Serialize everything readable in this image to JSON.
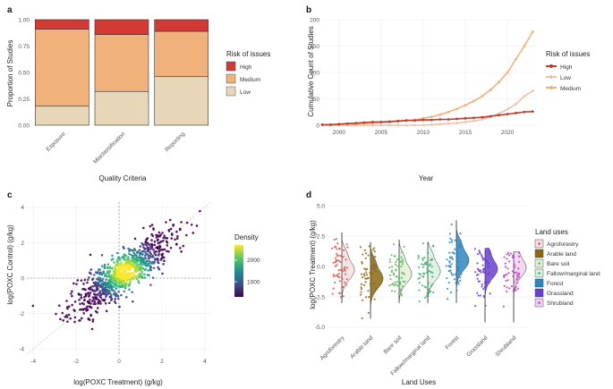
{
  "panels": {
    "a": {
      "label": "a",
      "chart_data": {
        "type": "bar",
        "stacked": true,
        "categories": [
          "Exposure",
          "Misclassification",
          "Reporting"
        ],
        "series": [
          {
            "name": "Low",
            "values": [
              0.18,
              0.32,
              0.46
            ],
            "color": "#e8d6b8"
          },
          {
            "name": "Medium",
            "values": [
              0.73,
              0.54,
              0.43
            ],
            "color": "#f0b27a"
          },
          {
            "name": "High",
            "values": [
              0.09,
              0.14,
              0.11
            ],
            "color": "#d33a34"
          }
        ],
        "ylim": [
          0,
          1
        ],
        "yticks": [
          "0.00",
          "0.25",
          "0.50",
          "0.75",
          "1.00"
        ],
        "xlabel": "Quality Criteria",
        "ylabel": "Proportion of Studies",
        "legend_title": "Risk of issues",
        "legend_items": [
          "High",
          "Medium",
          "Low"
        ]
      }
    },
    "b": {
      "label": "b",
      "chart_data": {
        "type": "line",
        "x": [
          1998,
          1999,
          2000,
          2001,
          2002,
          2003,
          2004,
          2005,
          2006,
          2007,
          2008,
          2009,
          2010,
          2011,
          2012,
          2013,
          2014,
          2015,
          2016,
          2017,
          2018,
          2019,
          2020,
          2021,
          2022,
          2023
        ],
        "series": [
          {
            "name": "High",
            "color": "#c0392b",
            "values": [
              1,
              1,
              2,
              3,
              4,
              5,
              6,
              6,
              7,
              8,
              9,
              9,
              10,
              10,
              11,
              11,
              12,
              13,
              14,
              15,
              17,
              19,
              21,
              23,
              25,
              26
            ]
          },
          {
            "name": "Low",
            "color": "#eac3ad",
            "values": [
              0,
              0,
              0,
              0,
              0,
              0,
              0,
              0,
              0,
              0,
              0,
              0,
              0,
              1,
              2,
              3,
              4,
              6,
              8,
              11,
              16,
              22,
              30,
              40,
              55,
              65
            ]
          },
          {
            "name": "Medium",
            "color": "#f0b27a",
            "values": [
              1,
              1,
              1,
              2,
              2,
              3,
              4,
              5,
              6,
              7,
              9,
              10,
              13,
              16,
              20,
              25,
              31,
              38,
              46,
              55,
              67,
              82,
              100,
              125,
              150,
              177
            ]
          }
        ],
        "xlim": [
          1998,
          2023.5
        ],
        "ylim": [
          0,
          200
        ],
        "xticks": [
          "2000",
          "2005",
          "2010",
          "2015",
          "2020"
        ],
        "yticks": [
          "0",
          "50",
          "100",
          "150",
          "200"
        ],
        "xlabel": "Year",
        "ylabel": "Cumulative Count of Studies",
        "legend_title": "Risk of issues",
        "legend_items": [
          "High",
          "Low",
          "Medium"
        ]
      }
    },
    "c": {
      "label": "c",
      "chart_data": {
        "type": "scatter",
        "description_density": true,
        "xlim": [
          -4.3,
          4.3
        ],
        "ylim": [
          -4.3,
          4.3
        ],
        "xticks": [
          "-4",
          "-2",
          "0",
          "2",
          "4"
        ],
        "yticks": [
          "-4",
          "-2",
          "0",
          "2",
          "4"
        ],
        "xlabel": "log(POXC Treatment) (g/kg)",
        "ylabel": "log(POXC Control) (g/kg)",
        "legend_title": "Density",
        "colorbar_ticks": [
          "2000",
          "1000"
        ],
        "colorbar_range": [
          300,
          2700
        ]
      }
    },
    "d": {
      "label": "d",
      "chart_data": {
        "type": "violin",
        "categories": [
          "Agroforestry",
          "Arable land",
          "Bare soil",
          "Fallow/marginal land",
          "Forest",
          "Grassland",
          "Shrubland"
        ],
        "colors": [
          "#d9534f",
          "#8b6914",
          "#5cb85c",
          "#3cb371",
          "#2e86c1",
          "#6a3fd0",
          "#c039c0"
        ],
        "fills": [
          "#f6dfdf",
          "#8b6914",
          "#dff0d8",
          "#d8f0e0",
          "#2e86c1",
          "#6a3fd0",
          "#f0d0f0"
        ],
        "medians": [
          -0.3,
          -1.0,
          -0.6,
          -0.4,
          0.5,
          -0.2,
          -0.1
        ],
        "ranges": [
          [
            -3.0,
            2.8
          ],
          [
            -4.3,
            2.0
          ],
          [
            -3.0,
            2.2
          ],
          [
            -3.0,
            2.0
          ],
          [
            -3.0,
            3.8
          ],
          [
            -4.6,
            1.5
          ],
          [
            -4.6,
            1.2
          ]
        ],
        "ylim": [
          -5.3,
          5.3
        ],
        "yticks": [
          "5.0",
          "2.5",
          "0.0",
          "-2.5",
          "-5.0"
        ],
        "xlabel": "Land Uses",
        "ylabel": "log(POXC Treatment) (g/kg)",
        "legend_title": "Land uses"
      }
    }
  }
}
